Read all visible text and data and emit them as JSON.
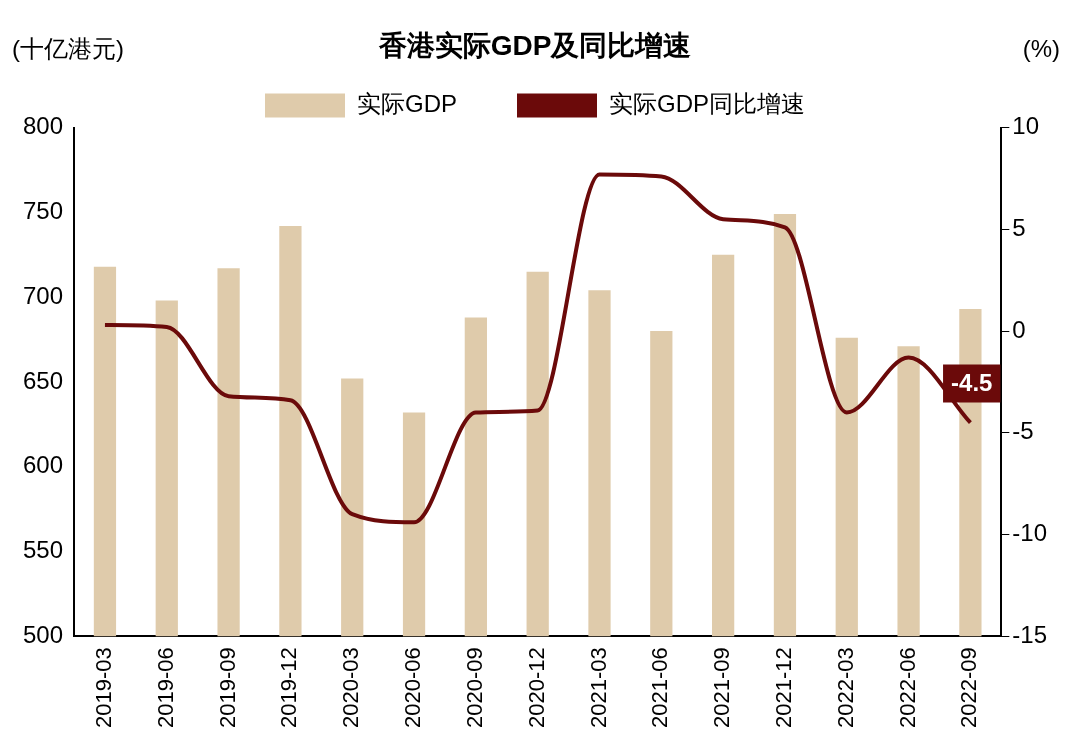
{
  "chart_data": {
    "type": "bar",
    "title": "香港实际GDP及同比增速",
    "ylabel": "(十亿港元)",
    "y2label": "(%)",
    "categories": [
      "2019-03",
      "2019-06",
      "2019-09",
      "2019-12",
      "2020-03",
      "2020-06",
      "2020-09",
      "2020-12",
      "2021-03",
      "2021-06",
      "2021-09",
      "2021-12",
      "2022-03",
      "2022-06",
      "2022-09"
    ],
    "series": [
      {
        "name": "实际GDP",
        "color": "#dfcbab",
        "values": [
          718,
          698,
          717,
          742,
          652,
          632,
          688,
          715,
          704,
          680,
          725,
          749,
          676,
          671,
          693
        ]
      },
      {
        "name": "实际GDP同比增速",
        "type": "line",
        "axis": "y2",
        "color": "#6b0a0a",
        "values": [
          0.3,
          0.2,
          -3.2,
          -3.4,
          -9.0,
          -9.4,
          -4.0,
          -3.9,
          7.7,
          7.6,
          5.5,
          5.1,
          -4.0,
          -1.3,
          -4.5
        ],
        "value_labels": [
          null,
          null,
          null,
          null,
          null,
          null,
          null,
          null,
          null,
          null,
          null,
          null,
          null,
          null,
          "-4.5"
        ]
      }
    ],
    "ylim": [
      500,
      800
    ],
    "yticks": [
      500,
      550,
      600,
      650,
      700,
      750,
      800
    ],
    "y2lim": [
      -15,
      10
    ],
    "y2ticks": [
      -15,
      -10,
      -5,
      0,
      5,
      10
    ],
    "grid": false,
    "legend": "top",
    "marker": "none",
    "line_style": "solid"
  }
}
